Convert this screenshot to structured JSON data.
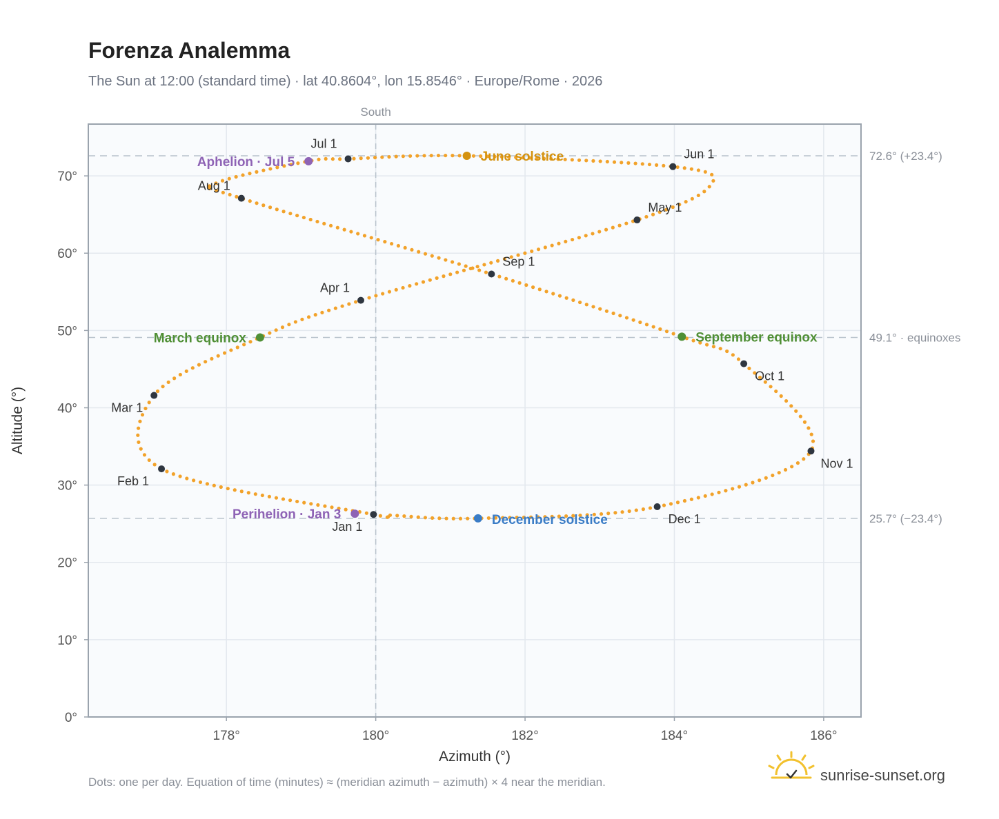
{
  "header": {
    "title": "Forenza Analemma",
    "subtitle": "The Sun at 12:00 (standard time) · lat 40.8604°, lon 15.8546° · Europe/Rome · 2026"
  },
  "footer": {
    "note": "Dots: one per day. Equation of time (minutes) ≈ (meridian azimuth − azimuth) × 4 near the meridian.",
    "brand": "sunrise-sunset.org"
  },
  "colors": {
    "curve": "#f2a22a",
    "month_marker": "#2f3640",
    "perihelion": "#8e63b5",
    "solstice_june": "#d4920f",
    "solstice_december": "#3a7cc6",
    "equinox": "#4f8f35",
    "plot_bg": "#f9fbfd",
    "grid": "#e3e8ee",
    "reference": "#b8c2cc",
    "frame": "#9aa3ad",
    "brand_icon": "#f2c12e"
  },
  "chart_data": {
    "type": "scatter",
    "xlabel": "Azimuth (°)",
    "ylabel": "Altitude (°)",
    "xlim": [
      176.15,
      186.5
    ],
    "ylim": [
      0,
      76.7
    ],
    "x_ticks": [
      178,
      180,
      182,
      184,
      186
    ],
    "x_tick_labels": [
      "178°",
      "180°",
      "182°",
      "184°",
      "186°"
    ],
    "y_ticks": [
      0,
      10,
      20,
      30,
      40,
      50,
      60,
      70
    ],
    "y_tick_labels": [
      "0°",
      "10°",
      "20°",
      "30°",
      "40°",
      "50°",
      "60°",
      "70°"
    ],
    "grid": true,
    "meridian": {
      "azimuth": 180,
      "label": "South"
    },
    "reference_lines": [
      {
        "altitude": 72.6,
        "label": "72.6° (+23.4°)"
      },
      {
        "altitude": 49.1,
        "label": "49.1° · equinoxes"
      },
      {
        "altitude": 25.7,
        "label": "25.7° (−23.4°)"
      }
    ],
    "daily_path": [
      {
        "day": 1,
        "az": 179.97,
        "alt": 26.2
      },
      {
        "day": 32,
        "az": 177.13,
        "alt": 32.1
      },
      {
        "day": 60,
        "az": 177.03,
        "alt": 41.6
      },
      {
        "day": 79,
        "az": 178.45,
        "alt": 49.1
      },
      {
        "day": 91,
        "az": 179.8,
        "alt": 53.9
      },
      {
        "day": 121,
        "az": 183.5,
        "alt": 64.3
      },
      {
        "day": 135,
        "az": 184.5,
        "alt": 69.0
      },
      {
        "day": 152,
        "az": 183.98,
        "alt": 71.2
      },
      {
        "day": 172,
        "az": 181.22,
        "alt": 72.6
      },
      {
        "day": 182,
        "az": 179.63,
        "alt": 72.2
      },
      {
        "day": 186,
        "az": 179.1,
        "alt": 71.9
      },
      {
        "day": 196,
        "az": 177.85,
        "alt": 69.0
      },
      {
        "day": 213,
        "az": 178.2,
        "alt": 67.1
      },
      {
        "day": 244,
        "az": 181.55,
        "alt": 57.3
      },
      {
        "day": 266,
        "az": 184.1,
        "alt": 49.2
      },
      {
        "day": 274,
        "az": 184.93,
        "alt": 45.7
      },
      {
        "day": 305,
        "az": 185.83,
        "alt": 34.4
      },
      {
        "day": 335,
        "az": 183.77,
        "alt": 27.2
      },
      {
        "day": 355,
        "az": 181.37,
        "alt": 25.7
      },
      {
        "day": 365,
        "az": 180.2,
        "alt": 26.1
      }
    ],
    "month_markers": [
      {
        "label": "Jan 1",
        "az": 179.97,
        "alt": 26.2
      },
      {
        "label": "Feb 1",
        "az": 177.13,
        "alt": 32.1
      },
      {
        "label": "Mar 1",
        "az": 177.03,
        "alt": 41.6
      },
      {
        "label": "Apr 1",
        "az": 179.8,
        "alt": 53.9
      },
      {
        "label": "May 1",
        "az": 183.5,
        "alt": 64.3
      },
      {
        "label": "Jun 1",
        "az": 183.98,
        "alt": 71.2
      },
      {
        "label": "Jul 1",
        "az": 179.63,
        "alt": 72.2
      },
      {
        "label": "Aug 1",
        "az": 178.2,
        "alt": 67.1
      },
      {
        "label": "Sep 1",
        "az": 181.55,
        "alt": 57.3
      },
      {
        "label": "Oct 1",
        "az": 184.93,
        "alt": 45.7
      },
      {
        "label": "Nov 1",
        "az": 185.83,
        "alt": 34.4
      },
      {
        "label": "Dec 1",
        "az": 183.77,
        "alt": 27.2
      }
    ],
    "events": [
      {
        "label": "Perihelion · Jan 3",
        "kind": "perihelion",
        "az": 179.72,
        "alt": 26.3
      },
      {
        "label": "March equinox",
        "kind": "equinox",
        "az": 178.45,
        "alt": 49.1
      },
      {
        "label": "June solstice",
        "kind": "solstice_june",
        "az": 181.22,
        "alt": 72.6
      },
      {
        "label": "Aphelion · Jul 5",
        "kind": "perihelion",
        "az": 179.1,
        "alt": 71.9
      },
      {
        "label": "September equinox",
        "kind": "equinox",
        "az": 184.1,
        "alt": 49.2
      },
      {
        "label": "December solstice",
        "kind": "solstice_december",
        "az": 181.37,
        "alt": 25.7
      }
    ]
  }
}
